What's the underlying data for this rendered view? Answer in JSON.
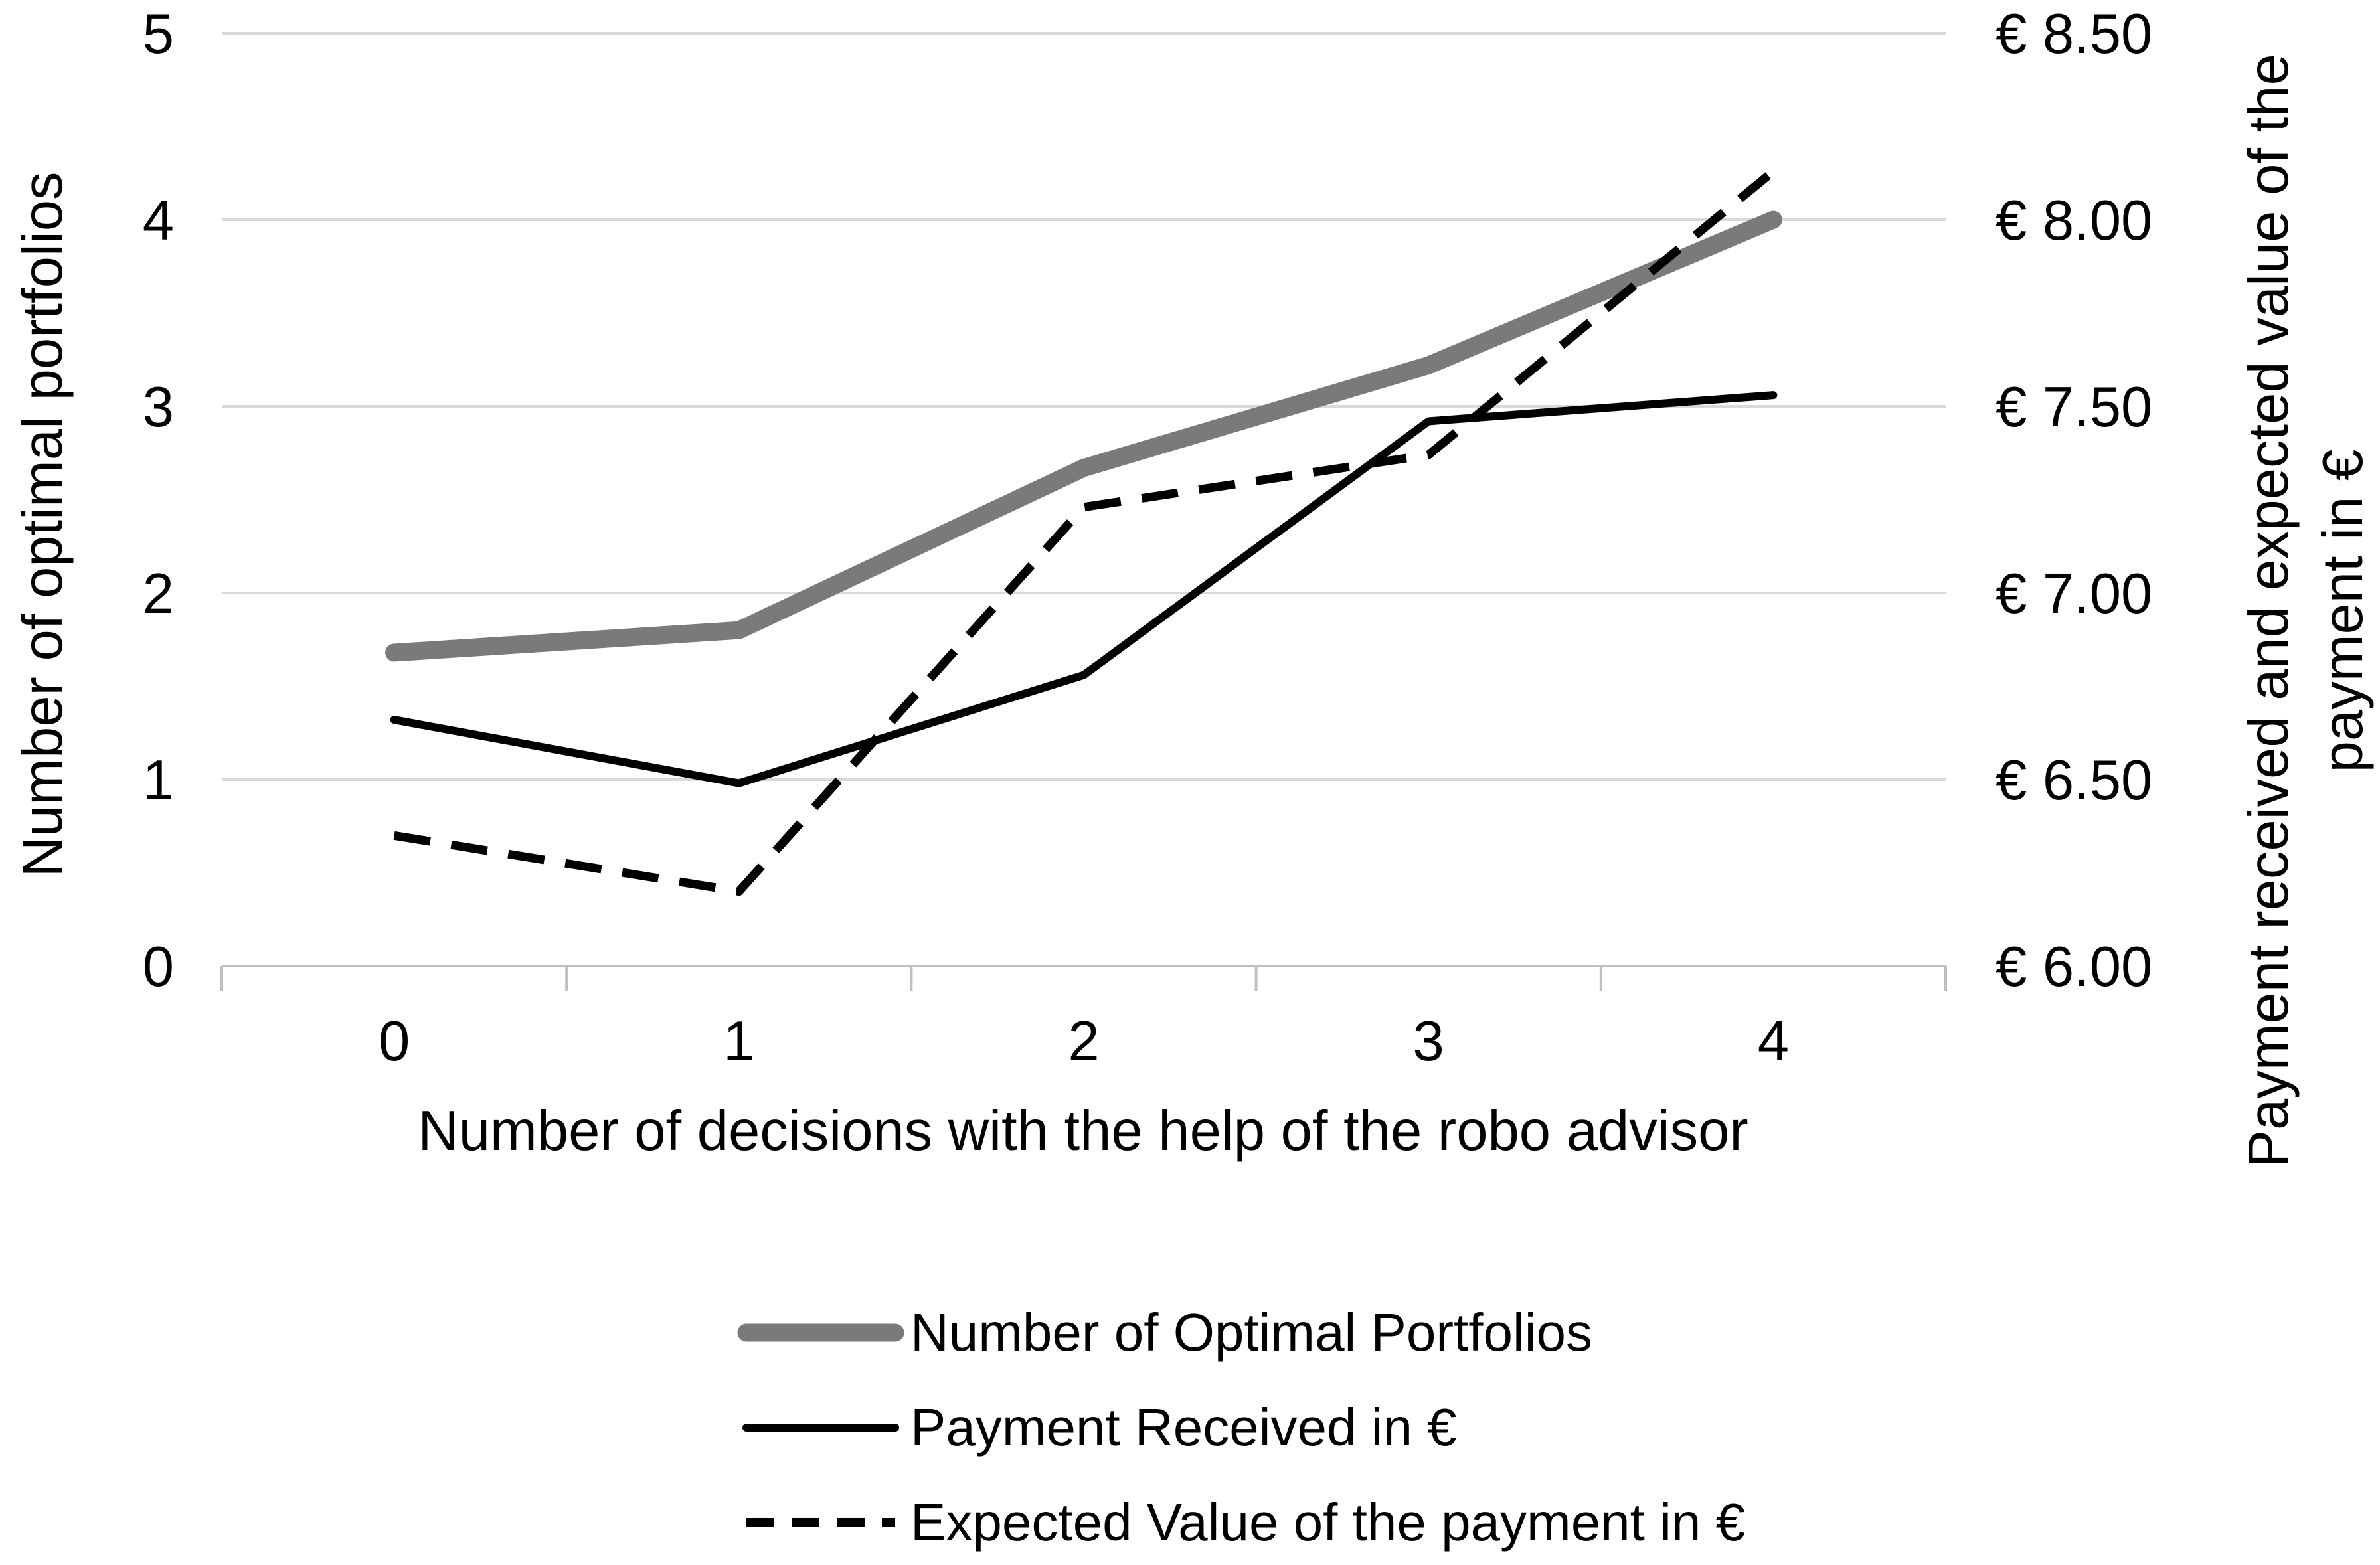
{
  "figure": {
    "background": "#ffffff",
    "left_axis": {
      "title": "Number of optimal portfolios",
      "ticks": [
        "0",
        "1",
        "2",
        "3",
        "4",
        "5"
      ],
      "min": 0,
      "max": 5,
      "step": 1
    },
    "right_axis": {
      "title_line1": "Payment received and expected value of the",
      "title_line2": "payment in €",
      "ticks": [
        "€ 6.00",
        "€ 6.50",
        "€ 7.00",
        "€ 7.50",
        "€ 8.00",
        "€ 8.50"
      ],
      "min": 6,
      "max": 8.5,
      "step": 0.5
    },
    "x_axis": {
      "title": "Number of decisions with the help of the robo advisor",
      "ticks": [
        "0",
        "1",
        "2",
        "3",
        "4"
      ]
    },
    "colors": {
      "grid": "#d9d9d9",
      "axis": "#bfbfbf",
      "text": "#000000",
      "series_gray": "#7a7a7a",
      "series_black": "#000000"
    }
  },
  "chart_data": {
    "type": "line",
    "x": [
      0,
      1,
      2,
      3,
      4
    ],
    "xlabel": "Number of decisions with the help of the robo advisor",
    "ylabel_left": "Number of optimal portfolios",
    "ylabel_right": "Payment received and expected value of the payment in €",
    "ylim_left": [
      0,
      5
    ],
    "ylim_right": [
      6,
      8.5
    ],
    "grid": true,
    "legend_position": "bottom",
    "series": [
      {
        "name": "Number of Optimal Portfolios",
        "axis": "left",
        "values": [
          1.68,
          1.8,
          2.67,
          3.22,
          4.0
        ],
        "color": "#7a7a7a",
        "width": 27,
        "dash": "",
        "cap": "round"
      },
      {
        "name": "Payment Received in €",
        "axis": "right",
        "values": [
          6.66,
          6.49,
          6.78,
          7.46,
          7.53
        ],
        "color": "#000000",
        "width": 12,
        "dash": "",
        "cap": "round"
      },
      {
        "name": "Expected Value of the payment in €",
        "axis": "right",
        "values": [
          6.35,
          6.2,
          7.23,
          7.37,
          8.13
        ],
        "color": "#000000",
        "width": 13,
        "dash": "55 32",
        "cap": "butt"
      }
    ]
  }
}
